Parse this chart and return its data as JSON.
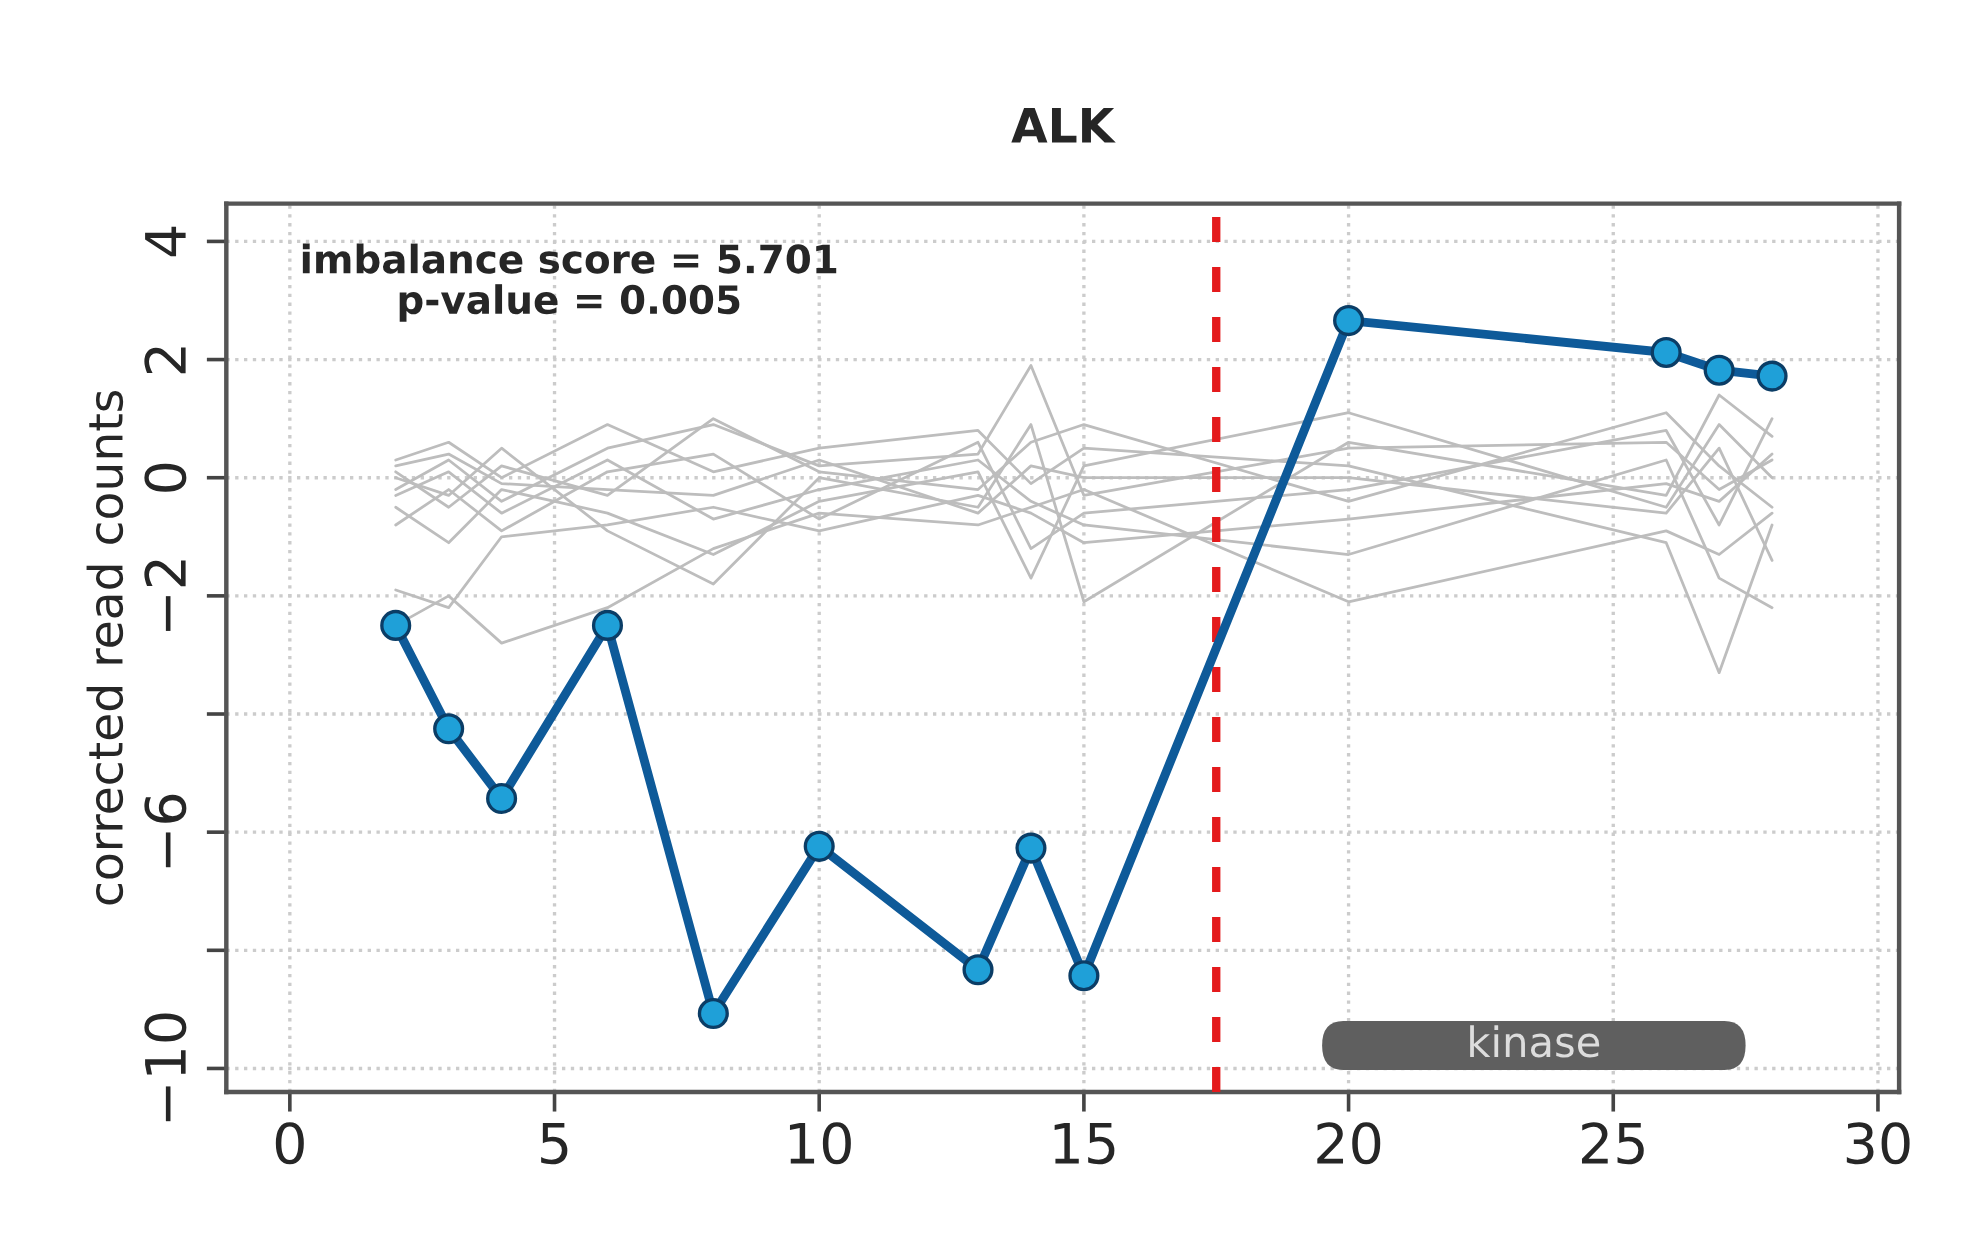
{
  "chart_data": {
    "type": "line",
    "title": "ALK",
    "ylabel": "corrected read counts",
    "x": [
      2,
      3,
      4,
      6,
      8,
      10,
      13,
      14,
      15,
      20,
      26,
      27,
      28
    ],
    "series": [
      {
        "color": "#bdbdbd",
        "values": [
          -0.2,
          0.3,
          -0.4,
          0.5,
          0.9,
          0.2,
          0.4,
          1.9,
          -0.3,
          0.5,
          0.6,
          -0.2,
          0.3
        ]
      },
      {
        "color": "#bdbdbd",
        "values": [
          0.1,
          -0.5,
          0.2,
          -0.3,
          1.0,
          0.1,
          -0.2,
          0.6,
          0.9,
          -0.4,
          1.1,
          0.2,
          -0.5
        ]
      },
      {
        "color": "#bdbdbd",
        "values": [
          -0.5,
          -1.1,
          -0.2,
          -0.6,
          -1.3,
          -0.4,
          0.1,
          -1.7,
          0.2,
          1.1,
          -0.5,
          0.9,
          0.0
        ]
      },
      {
        "color": "#bdbdbd",
        "values": [
          -1.9,
          -2.2,
          -1.0,
          -0.8,
          -0.5,
          -0.9,
          -0.3,
          -0.6,
          -1.1,
          -0.7,
          -0.1,
          -0.4,
          0.4
        ]
      },
      {
        "color": "#bdbdbd",
        "values": [
          -2.5,
          -2.0,
          -2.8,
          -2.2,
          -1.2,
          -0.6,
          -0.8,
          -0.5,
          -0.2,
          -2.1,
          -0.9,
          -1.3,
          -0.6
        ]
      },
      {
        "color": "#bdbdbd",
        "values": [
          0.3,
          0.6,
          0.0,
          0.9,
          0.1,
          0.5,
          0.8,
          -0.1,
          0.5,
          0.2,
          -1.1,
          -3.3,
          -0.8
        ]
      },
      {
        "color": "#bdbdbd",
        "values": [
          -0.3,
          0.1,
          -0.6,
          0.3,
          -0.7,
          -0.2,
          0.3,
          -0.4,
          -0.8,
          -1.3,
          0.3,
          -1.7,
          -2.2
        ]
      },
      {
        "color": "#bdbdbd",
        "values": [
          0.0,
          -0.3,
          0.5,
          -0.9,
          -1.8,
          0.0,
          -0.5,
          0.9,
          -2.1,
          0.6,
          -0.3,
          1.4,
          0.7
        ]
      },
      {
        "color": "#bdbdbd",
        "values": [
          -0.8,
          -0.2,
          -0.9,
          0.1,
          0.4,
          -0.7,
          0.6,
          -1.2,
          -0.6,
          -0.2,
          0.8,
          -0.8,
          1.0
        ]
      },
      {
        "color": "#bdbdbd",
        "values": [
          0.2,
          0.4,
          -0.1,
          -0.2,
          -0.3,
          0.3,
          -0.6,
          0.2,
          0.0,
          0.0,
          -0.6,
          0.5,
          -1.4
        ]
      },
      {
        "color": "#0e5a99",
        "marker": "circle",
        "values": [
          -2.5,
          -4.25,
          -5.43,
          -2.5,
          -9.07,
          -6.24,
          -8.33,
          -6.27,
          -8.43,
          2.66,
          2.12,
          1.82,
          1.72
        ]
      }
    ],
    "xlim": [
      -1.2,
      30.4
    ],
    "xticks": [
      0,
      5,
      10,
      15,
      20,
      25,
      30
    ],
    "ylim": [
      -10.4,
      4.64
    ],
    "yticks": [
      {
        "value": 4,
        "label": "4"
      },
      {
        "value": 2,
        "label": "2"
      },
      {
        "value": 0,
        "label": "0"
      },
      {
        "value": -2,
        "label": "−2"
      },
      {
        "value": -4,
        "label": null
      },
      {
        "value": -6,
        "label": "−6"
      },
      {
        "value": -8,
        "label": null
      },
      {
        "value": -10,
        "label": "−10"
      }
    ],
    "grid": true,
    "ref_lines": [
      {
        "axis": "x",
        "value": 17.5,
        "color": "#e41a1c",
        "line_style": "dashed"
      }
    ],
    "bands": [
      {
        "axis": "x",
        "from": 19.5,
        "to": 27.5,
        "label": "kinase",
        "color": "#5f5f5f"
      }
    ],
    "annotations": [
      "imbalance score = 5.701\np-value = 0.005"
    ]
  }
}
